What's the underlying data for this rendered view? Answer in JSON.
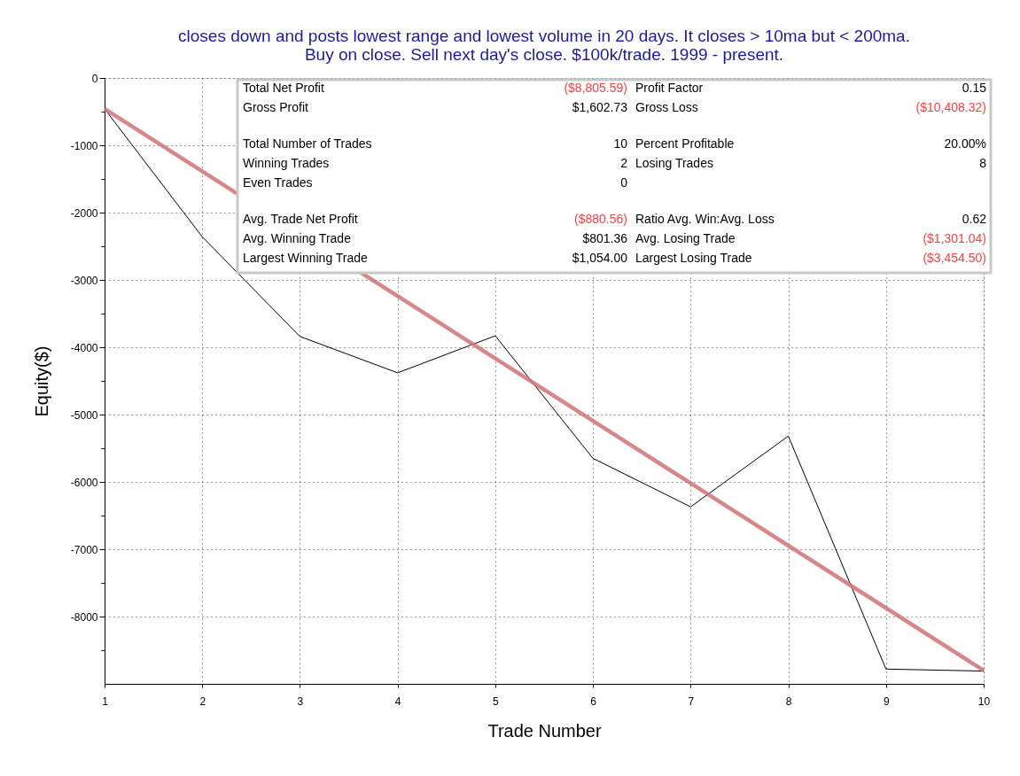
{
  "chart_data": {
    "type": "line",
    "title": "closes down and posts lowest range and lowest volume in 20 days. It closes > 10ma but < 200ma.\nBuy on close. Sell next day's close. $100k/trade. 1999 - present.",
    "xlabel": "Trade Number",
    "ylabel": "Equity($)",
    "x": [
      1,
      2,
      3,
      4,
      5,
      6,
      7,
      8,
      9,
      10
    ],
    "series": [
      {
        "color": "#000000",
        "values": [
          -460,
          -2360,
          -3840,
          -4380,
          -3830,
          -5650,
          -6370,
          -5320,
          -8780,
          -8810
        ]
      },
      {
        "type": "line",
        "color": "#d07272",
        "x": [
          1,
          10
        ],
        "values": [
          -460,
          -8800
        ]
      }
    ],
    "xlim": [
      1,
      10
    ],
    "xticks": [
      1,
      2,
      3,
      4,
      5,
      6,
      7,
      8,
      9,
      10
    ],
    "ylim": [
      -9000,
      0
    ],
    "yticks": [
      0,
      {
        "value": -500,
        "label": null
      },
      -1000,
      {
        "value": -1500,
        "label": null
      },
      -2000,
      {
        "value": -2500,
        "label": null
      },
      -3000,
      {
        "value": -3500,
        "label": null
      },
      -4000,
      {
        "value": -4500,
        "label": null
      },
      -5000,
      {
        "value": -5500,
        "label": null
      },
      -6000,
      {
        "value": -6500,
        "label": null
      },
      -7000,
      {
        "value": -7500,
        "label": null
      },
      -8000,
      {
        "value": -8500,
        "label": null
      }
    ],
    "grid": true,
    "annotations": [
      "Total Net Profit",
      "($8,805.59)",
      "Profit Factor",
      "0.15",
      "Gross Profit",
      "$1,602.73",
      "Gross Loss",
      "($10,408.32)",
      "Total Number of Trades",
      "10",
      "Percent Profitable",
      "20.00%",
      "Winning Trades",
      "2",
      "Losing Trades",
      "8",
      "Even Trades",
      "0",
      "Avg. Trade Net Profit",
      "($880.56)",
      "Ratio Avg. Win:Avg. Loss",
      "0.62",
      "Avg. Winning Trade",
      "$801.36",
      "Avg. Losing Trade",
      "($1,301.04)",
      "Largest Winning Trade",
      "$1,054.00",
      "Largest Losing Trade",
      "($3,454.50)"
    ]
  }
}
